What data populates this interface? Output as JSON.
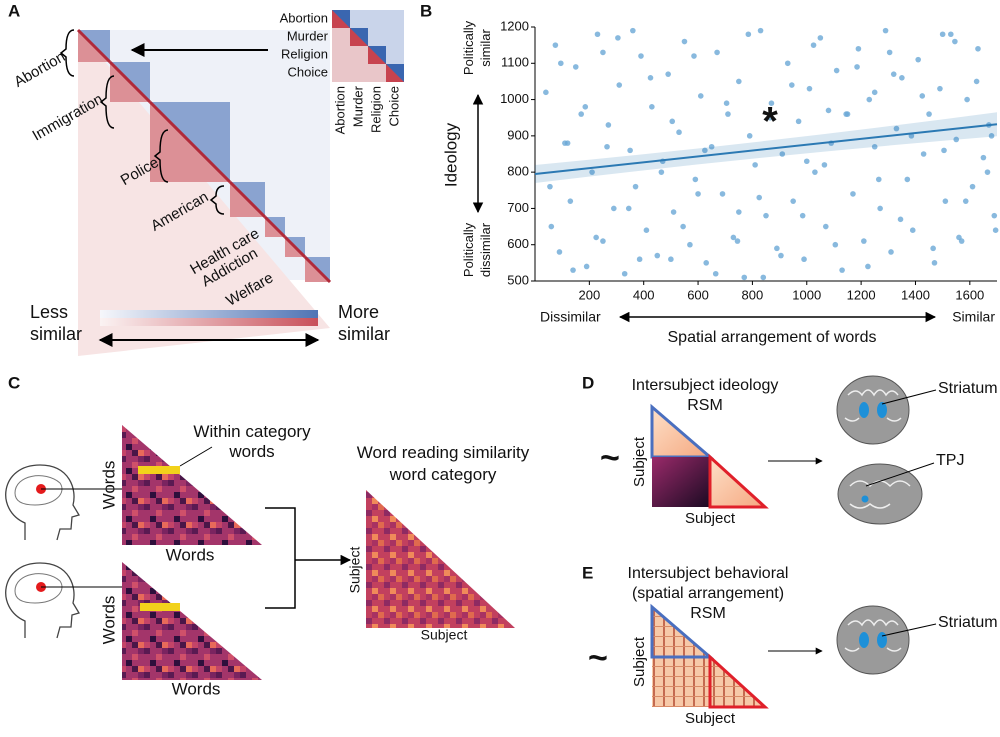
{
  "panel_labels": [
    "A",
    "B",
    "C",
    "D",
    "E"
  ],
  "panel_a": {
    "categories": [
      "Abortion",
      "Immigration",
      "Police",
      "American",
      "Health care",
      "Addiction",
      "Welfare"
    ],
    "inset_words": [
      "Abortion",
      "Murder",
      "Religion",
      "Choice"
    ],
    "legend": {
      "low": [
        "Less",
        "similar"
      ],
      "high": [
        "More",
        "similar"
      ]
    }
  },
  "chart_data": {
    "type": "scatter",
    "y_label": "Ideology",
    "y_annotations": {
      "top": [
        "Politically",
        "similar"
      ],
      "bottom": [
        "Politically",
        "dissimilar"
      ]
    },
    "x_label": "Spatial arrangement of words",
    "x_annotations": {
      "left": "Dissimilar",
      "right": "Similar"
    },
    "significance": "*",
    "color": "#6aa8d6",
    "line_color": "#2b79b3",
    "xlim": [
      0,
      1700
    ],
    "ylim": [
      500,
      1200
    ],
    "xticks": [
      200,
      400,
      600,
      800,
      1000,
      1200,
      1400,
      1600
    ],
    "yticks": [
      500,
      600,
      700,
      800,
      900,
      1000,
      1100,
      1200
    ],
    "x": [
      40,
      60,
      75,
      90,
      110,
      130,
      150,
      170,
      190,
      210,
      230,
      250,
      270,
      290,
      310,
      330,
      350,
      370,
      390,
      410,
      430,
      450,
      470,
      490,
      510,
      530,
      550,
      570,
      590,
      610,
      630,
      650,
      670,
      690,
      710,
      730,
      750,
      770,
      790,
      810,
      830,
      850,
      870,
      890,
      910,
      930,
      950,
      970,
      990,
      1010,
      1030,
      1050,
      1070,
      1090,
      1110,
      1130,
      1150,
      1170,
      1190,
      1210,
      1230,
      1250,
      1270,
      1290,
      1310,
      1330,
      1350,
      1370,
      1390,
      1410,
      1430,
      1450,
      1470,
      1490,
      1510,
      1530,
      1550,
      1570,
      1590,
      1610,
      1630,
      1650,
      1670,
      1690,
      55,
      95,
      140,
      185,
      225,
      265,
      305,
      345,
      385,
      425,
      465,
      505,
      545,
      585,
      625,
      665,
      705,
      745,
      785,
      825,
      865,
      905,
      945,
      985,
      1025,
      1065,
      1105,
      1145,
      1185,
      1225,
      1265,
      1305,
      1345,
      1385,
      1425,
      1465,
      1505,
      1545,
      1585,
      1625,
      1665,
      1695,
      120,
      360,
      600,
      840,
      1080,
      1320,
      1560,
      250,
      500,
      750,
      1000,
      1250,
      1500,
      1680
    ],
    "values": [
      1020,
      650,
      1150,
      580,
      880,
      720,
      1090,
      960,
      540,
      800,
      1180,
      610,
      930,
      700,
      1040,
      520,
      860,
      760,
      1120,
      640,
      980,
      570,
      830,
      1070,
      690,
      910,
      1160,
      600,
      780,
      1010,
      550,
      870,
      1130,
      740,
      960,
      620,
      1050,
      510,
      900,
      820,
      1190,
      680,
      990,
      590,
      850,
      1100,
      720,
      940,
      560,
      1030,
      800,
      1170,
      650,
      880,
      1080,
      530,
      960,
      740,
      1140,
      610,
      1000,
      870,
      700,
      1190,
      580,
      920,
      1060,
      780,
      640,
      1110,
      850,
      960,
      550,
      1030,
      720,
      1180,
      890,
      610,
      1000,
      760,
      1140,
      840,
      930,
      680,
      760,
      1100,
      530,
      980,
      620,
      870,
      1170,
      700,
      560,
      1060,
      800,
      940,
      650,
      1120,
      860,
      520,
      990,
      610,
      1180,
      730,
      950,
      570,
      1040,
      680,
      1150,
      820,
      600,
      960,
      1090,
      540,
      780,
      1130,
      670,
      900,
      1010,
      590,
      860,
      1160,
      720,
      1050,
      800,
      640,
      880,
      1190,
      740,
      510,
      970,
      1070,
      620,
      1130,
      560,
      690,
      830,
      1020,
      1180,
      900
    ],
    "trend": {
      "x": [
        0,
        1700
      ],
      "values": [
        795,
        932
      ]
    }
  },
  "panel_c": {
    "annotation": [
      "Within category",
      "words"
    ],
    "axis_label": "Words",
    "output_title": [
      "Word reading similarity",
      "word category"
    ],
    "output_axis": "Subject"
  },
  "panel_d": {
    "symbol": "~",
    "title": [
      "Intersubject ideology",
      "RSM"
    ],
    "axis_label": "Subject",
    "regions": [
      "Striatum",
      "TPJ"
    ]
  },
  "panel_e": {
    "symbol": "~",
    "title": [
      "Intersubject behavioral",
      "(spatial arrangement)",
      "RSM"
    ],
    "axis_label": "Subject",
    "regions": [
      "Striatum"
    ]
  }
}
